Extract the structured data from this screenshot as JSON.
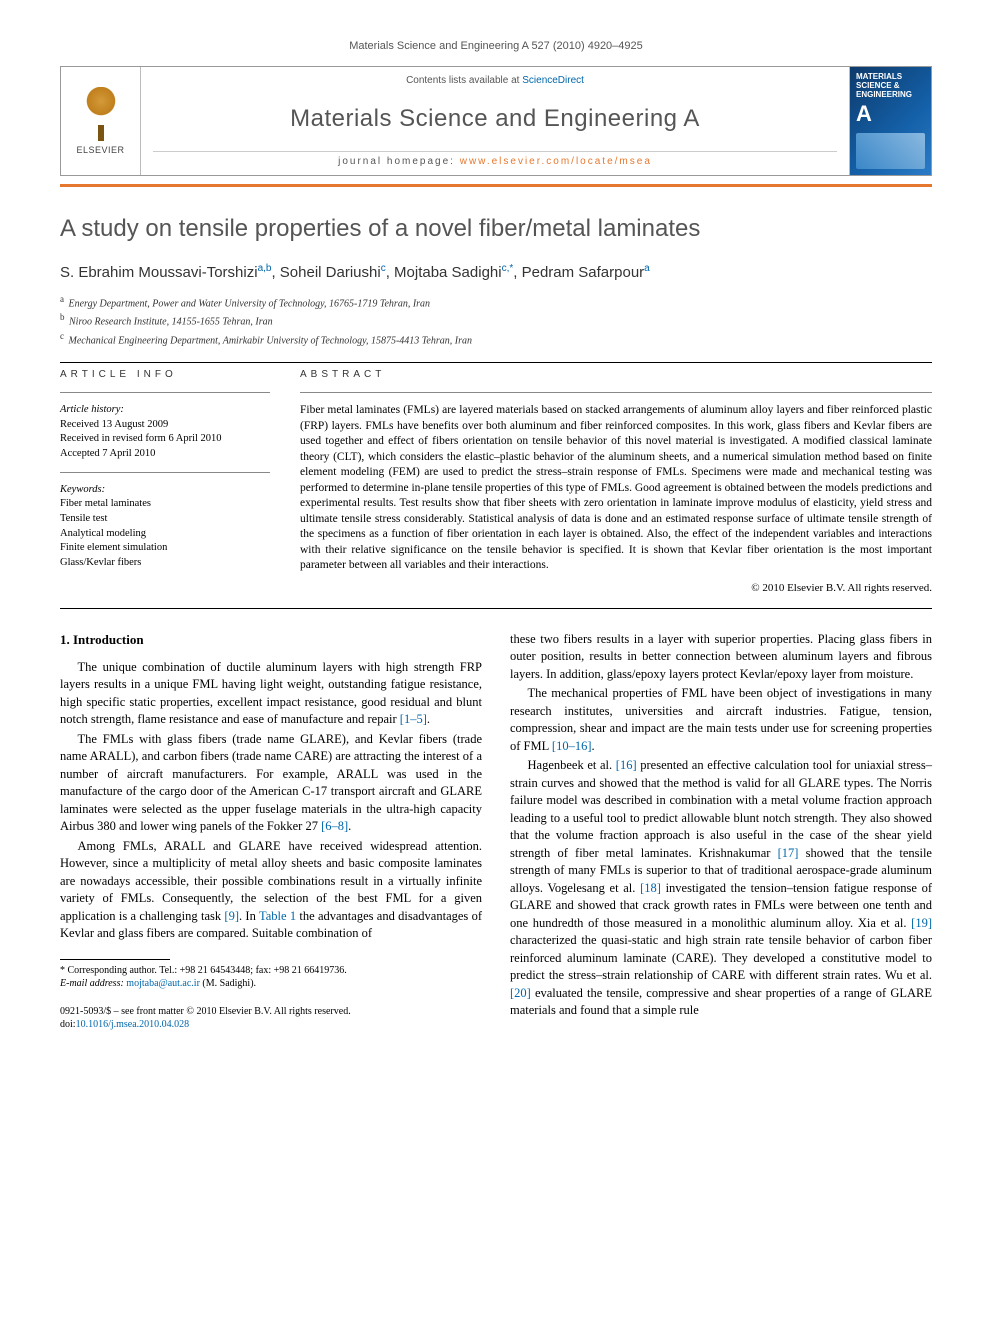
{
  "running_head": "Materials Science and Engineering A 527 (2010) 4920–4925",
  "banner": {
    "publisher": "ELSEVIER",
    "contents_prefix": "Contents lists available at ",
    "contents_link": "ScienceDirect",
    "journal_name": "Materials Science and Engineering A",
    "homepage_prefix": "journal homepage: ",
    "homepage_url": "www.elsevier.com/locate/msea",
    "cover_label_top": "MATERIALS SCIENCE & ENGINEERING",
    "cover_letter": "A"
  },
  "article": {
    "title": "A study on tensile properties of a novel fiber/metal laminates",
    "authors_html": "S. Ebrahim Moussavi-Torshizi<sup>a,b</sup>, Soheil Dariushi<sup>c</sup>, Mojtaba Sadighi<sup>c,*</sup>, Pedram Safarpour<sup>a</sup>",
    "affiliations": [
      {
        "key": "a",
        "text": "Energy Department, Power and Water University of Technology, 16765-1719 Tehran, Iran"
      },
      {
        "key": "b",
        "text": "Niroo Research Institute, 14155-1655 Tehran, Iran"
      },
      {
        "key": "c",
        "text": "Mechanical Engineering Department, Amirkabir University of Technology, 15875-4413 Tehran, Iran"
      }
    ]
  },
  "article_info": {
    "label": "ARTICLE INFO",
    "history_label": "Article history:",
    "history": [
      "Received 13 August 2009",
      "Received in revised form 6 April 2010",
      "Accepted 7 April 2010"
    ],
    "keywords_label": "Keywords:",
    "keywords": [
      "Fiber metal laminates",
      "Tensile test",
      "Analytical modeling",
      "Finite element simulation",
      "Glass/Kevlar fibers"
    ]
  },
  "abstract": {
    "label": "ABSTRACT",
    "text": "Fiber metal laminates (FMLs) are layered materials based on stacked arrangements of aluminum alloy layers and fiber reinforced plastic (FRP) layers. FMLs have benefits over both aluminum and fiber reinforced composites. In this work, glass fibers and Kevlar fibers are used together and effect of fibers orientation on tensile behavior of this novel material is investigated. A modified classical laminate theory (CLT), which considers the elastic–plastic behavior of the aluminum sheets, and a numerical simulation method based on finite element modeling (FEM) are used to predict the stress–strain response of FMLs. Specimens were made and mechanical testing was performed to determine in-plane tensile properties of this type of FMLs. Good agreement is obtained between the models predictions and experimental results. Test results show that fiber sheets with zero orientation in laminate improve modulus of elasticity, yield stress and ultimate tensile stress considerably. Statistical analysis of data is done and an estimated response surface of ultimate tensile strength of the specimens as a function of fiber orientation in each layer is obtained. Also, the effect of the independent variables and interactions with their relative significance on the tensile behavior is specified. It is shown that Kevlar fiber orientation is the most important parameter between all variables and their interactions.",
    "copyright": "© 2010 Elsevier B.V. All rights reserved."
  },
  "section1": {
    "heading": "1. Introduction",
    "p1": "The unique combination of ductile aluminum layers with high strength FRP layers results in a unique FML having light weight, outstanding fatigue resistance, high specific static properties, excellent impact resistance, good residual and blunt notch strength, flame resistance and ease of manufacture and repair [1–5].",
    "p2": "The FMLs with glass fibers (trade name GLARE), and Kevlar fibers (trade name ARALL), and carbon fibers (trade name CARE) are attracting the interest of a number of aircraft manufacturers. For example, ARALL was used in the manufacture of the cargo door of the American C-17 transport aircraft and GLARE laminates were selected as the upper fuselage materials in the ultra-high capacity Airbus 380 and lower wing panels of the Fokker 27 [6–8].",
    "p3": "Among FMLs, ARALL and GLARE have received widespread attention. However, since a multiplicity of metal alloy sheets and basic composite laminates are nowadays accessible, their possible combinations result in a virtually infinite variety of FMLs. Consequently, the selection of the best FML for a given application is a challenging task [9]. In Table 1 the advantages and disadvantages of Kevlar and glass fibers are compared. Suitable combination of",
    "p4": "these two fibers results in a layer with superior properties. Placing glass fibers in outer position, results in better connection between aluminum layers and fibrous layers. In addition, glass/epoxy layers protect Kevlar/epoxy layer from moisture.",
    "p5": "The mechanical properties of FML have been object of investigations in many research institutes, universities and aircraft industries. Fatigue, tension, compression, shear and impact are the main tests under use for screening properties of FML [10–16].",
    "p6": "Hagenbeek et al. [16] presented an effective calculation tool for uniaxial stress–strain curves and showed that the method is valid for all GLARE types. The Norris failure model was described in combination with a metal volume fraction approach leading to a useful tool to predict allowable blunt notch strength. They also showed that the volume fraction approach is also useful in the case of the shear yield strength of fiber metal laminates. Krishnakumar [17] showed that the tensile strength of many FMLs is superior to that of traditional aerospace-grade aluminum alloys. Vogelesang et al. [18] investigated the tension–tension fatigue response of GLARE and showed that crack growth rates in FMLs were between one tenth and one hundredth of those measured in a monolithic aluminum alloy. Xia et al. [19] characterized the quasi-static and high strain rate tensile behavior of carbon fiber reinforced aluminum laminate (CARE). They developed a constitutive model to predict the stress–strain relationship of CARE with different strain rates. Wu et al. [20] evaluated the tensile, compressive and shear properties of a range of GLARE materials and found that a simple rule"
  },
  "footnotes": {
    "corr": "* Corresponding author. Tel.: +98 21 64543448; fax: +98 21 66419736.",
    "email_label": "E-mail address:",
    "email": "mojtaba@aut.ac.ir",
    "email_author": "(M. Sadighi)."
  },
  "footer": {
    "issn_line": "0921-5093/$ – see front matter © 2010 Elsevier B.V. All rights reserved.",
    "doi_label": "doi:",
    "doi": "10.1016/j.msea.2010.04.028"
  },
  "colors": {
    "accent_orange": "#e6772e",
    "link_blue": "#0066aa",
    "heading_gray": "#555555",
    "cover_blue": "#1460a8"
  }
}
